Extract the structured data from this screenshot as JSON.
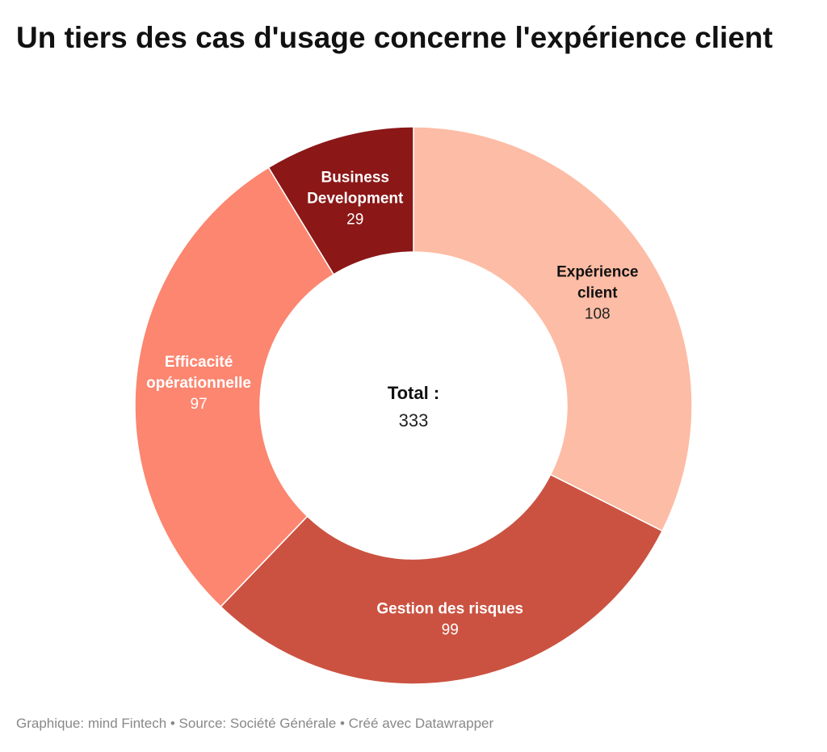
{
  "chart_data": {
    "type": "pie",
    "variant": "donut",
    "title": "Un tiers des cas d'usage concerne l'expérience client",
    "categories": [
      "Expérience client",
      "Gestion des risques",
      "Efficacité opérationnelle",
      "Business Development"
    ],
    "label_lines": [
      [
        "Expérience",
        "client"
      ],
      [
        "Gestion des risques"
      ],
      [
        "Efficacité",
        "opérationnelle"
      ],
      [
        "Business",
        "Development"
      ]
    ],
    "values": [
      108,
      99,
      97,
      29
    ],
    "colors": [
      "#fdbca5",
      "#cb5241",
      "#fc8670",
      "#8b1717"
    ],
    "label_colors": [
      "#111111",
      "#ffffff",
      "#ffffff",
      "#ffffff"
    ],
    "value_colors": [
      "#222222",
      "#ffffff",
      "#ffffff",
      "#ffffff"
    ],
    "center_label": "Total :",
    "center_value": "333",
    "start_angle": "12 o'clock",
    "direction": "clockwise"
  },
  "footer": {
    "text": "Graphique: mind Fintech • Source: Société Générale • Créé avec Datawrapper"
  }
}
